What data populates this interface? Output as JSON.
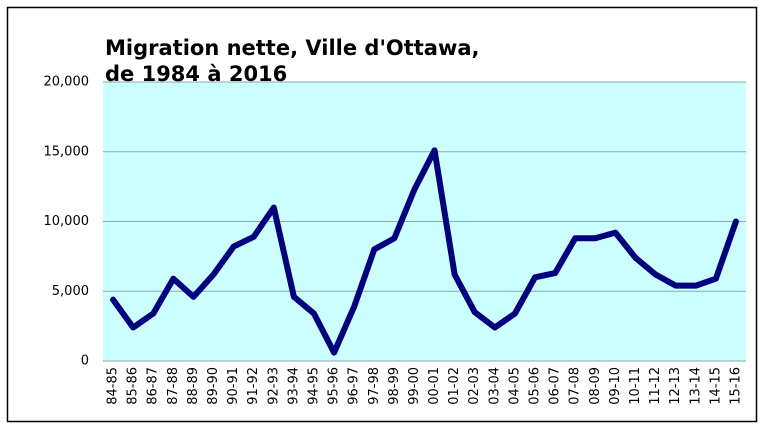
{
  "chart_data": {
    "type": "line",
    "title": [
      "Migration nette, Ville d'Ottawa,",
      "de 1984 à 2016"
    ],
    "categories": [
      "84-85",
      "85-86",
      "86-87",
      "87-88",
      "88-89",
      "89-90",
      "90-91",
      "91-92",
      "92-93",
      "93-94",
      "94-95",
      "95-96",
      "96-97",
      "97-98",
      "98-99",
      "99-00",
      "00-01",
      "01-02",
      "02-03",
      "03-04",
      "04-05",
      "05-06",
      "06-07",
      "07-08",
      "08-09",
      "09-10",
      "10-11",
      "11-12",
      "12-13",
      "13-14",
      "14-15",
      "15-16"
    ],
    "series": [
      {
        "color": "#000080",
        "values": [
          4400,
          2400,
          3400,
          5900,
          4600,
          6200,
          8200,
          8900,
          11000,
          4600,
          3400,
          600,
          3900,
          8000,
          8800,
          12300,
          15100,
          6200,
          3500,
          2400,
          3400,
          6000,
          6300,
          8800,
          8800,
          9200,
          7400,
          6200,
          5400,
          5400,
          5900,
          10000
        ]
      }
    ],
    "ylim": [
      0,
      20000
    ],
    "yticks": [
      0,
      {
        "value": 5000,
        "label": "5,000"
      },
      {
        "value": 10000,
        "label": "10,000"
      },
      {
        "value": 15000,
        "label": "15,000"
      },
      {
        "value": 20000,
        "label": "20,000"
      }
    ],
    "grid": true,
    "plot_background": "#ccffff"
  }
}
